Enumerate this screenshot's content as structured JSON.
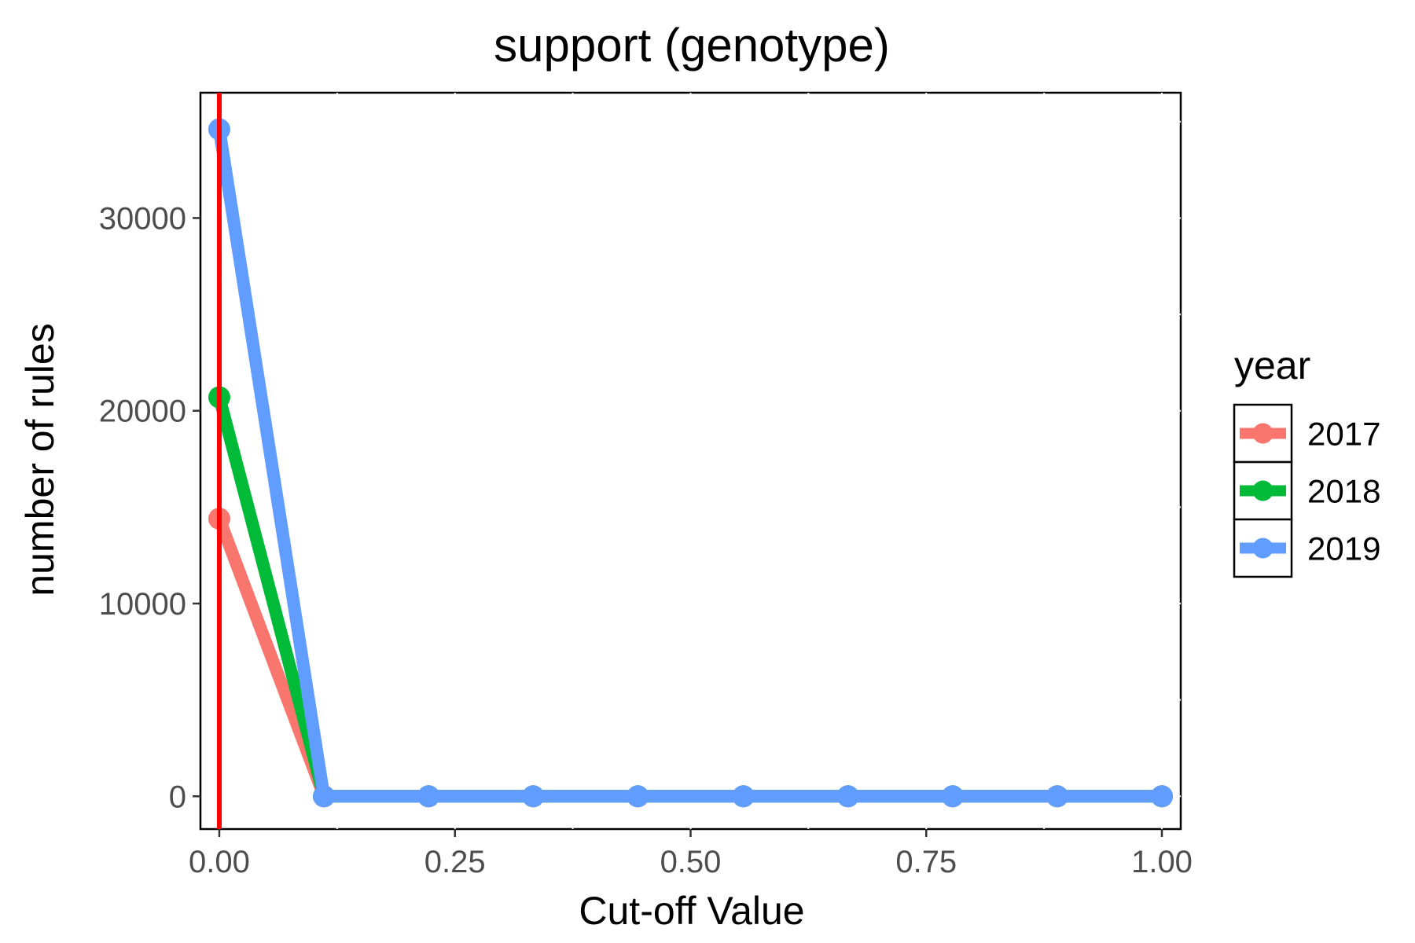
{
  "chart_data": {
    "type": "line",
    "title": "support (genotype)",
    "xlabel": "Cut-off Value",
    "ylabel": "number of rules",
    "xlim": [
      -0.02,
      1.02
    ],
    "ylim": [
      -1700,
      36500
    ],
    "x_ticks": [
      0,
      0.25,
      0.5,
      0.75,
      1
    ],
    "x_tick_labels": [
      "0.00",
      "0.25",
      "0.50",
      "0.75",
      "1.00"
    ],
    "y_ticks": [
      0,
      10000,
      20000,
      30000
    ],
    "y_tick_labels": [
      "0",
      "10000",
      "20000",
      "30000"
    ],
    "x": [
      0,
      0.111,
      0.222,
      0.333,
      0.444,
      0.556,
      0.667,
      0.778,
      0.889,
      1.0
    ],
    "series": [
      {
        "name": "2017",
        "color": "#F8766D",
        "values": [
          14400,
          0,
          0,
          0,
          0,
          0,
          0,
          0,
          0,
          0
        ]
      },
      {
        "name": "2018",
        "color": "#00BA38",
        "values": [
          20700,
          0,
          0,
          0,
          0,
          0,
          0,
          0,
          0,
          0
        ]
      },
      {
        "name": "2019",
        "color": "#619CFF",
        "values": [
          34600,
          0,
          0,
          0,
          0,
          0,
          0,
          0,
          0,
          0
        ]
      }
    ],
    "vline": {
      "x": 0,
      "color": "#FF0000"
    },
    "legend": {
      "title": "year",
      "position": "right"
    },
    "grid": false
  }
}
